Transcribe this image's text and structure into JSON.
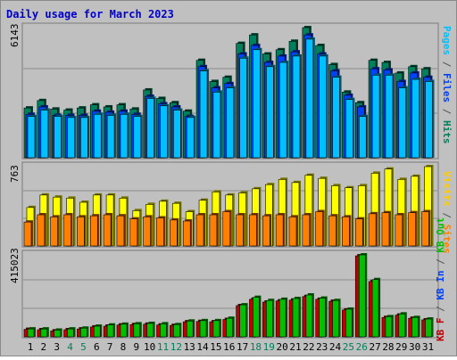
{
  "title": "Daily usage for March 2023",
  "colors": {
    "background": "#c0c0c0",
    "pages": "#00c0ff",
    "files": "#0040ff",
    "hits": "#00805c",
    "visits": "#ffff00",
    "sites": "#ff8000",
    "kb_in": "#00c000",
    "kb_out": "#c00000",
    "weekday_label": "#000000",
    "weekend_label": "#00805c",
    "highlight_label": "#00805c"
  },
  "labels": {
    "pages_max": "6143",
    "visits_max": "763",
    "kb_max": "415023",
    "side1": {
      "pages": "Pages",
      "sep1": " / ",
      "files": "Files",
      "sep2": " / ",
      "hits": "Hits"
    },
    "side2": {
      "visits": "Visits",
      "sep1": " / ",
      "sites": "Sites"
    },
    "side3": {
      "kbout": "KB F",
      "sep1": " / ",
      "kbin": "KB In",
      "sep2": " / ",
      "kbo": "KB Out"
    }
  },
  "chart_data": [
    {
      "type": "bar",
      "title": "Daily usage for March 2023",
      "categories": [
        "1",
        "2",
        "3",
        "4",
        "5",
        "6",
        "7",
        "8",
        "9",
        "10",
        "11",
        "12",
        "13",
        "14",
        "15",
        "16",
        "17",
        "18",
        "19",
        "20",
        "21",
        "22",
        "23",
        "24",
        "25",
        "26",
        "27",
        "28",
        "29",
        "30",
        "31"
      ],
      "category_label_colors": [
        "weekday",
        "weekday",
        "weekday",
        "weekend",
        "weekend",
        "weekday",
        "weekday",
        "weekday",
        "weekday",
        "weekday",
        "weekend",
        "weekend",
        "weekday",
        "weekday",
        "weekday",
        "weekday",
        "weekday",
        "weekend",
        "weekend",
        "weekday",
        "weekday",
        "weekday",
        "weekday",
        "weekday",
        "weekend",
        "weekend",
        "weekday",
        "weekday",
        "weekday",
        "weekday",
        "weekday"
      ],
      "ylim": [
        0,
        6143
      ],
      "series": [
        {
          "name": "Hits",
          "color": "#00805c",
          "values": [
            2350,
            2700,
            2300,
            2250,
            2350,
            2500,
            2400,
            2500,
            2300,
            3200,
            2800,
            2600,
            2200,
            4600,
            3600,
            3800,
            5400,
            5800,
            4900,
            5100,
            5500,
            6143,
            5300,
            4400,
            3100,
            2600,
            4600,
            4500,
            4000,
            4300,
            4200
          ]
        },
        {
          "name": "Files",
          "color": "#0040ff",
          "values": [
            2050,
            2400,
            2000,
            2000,
            2000,
            2200,
            2150,
            2200,
            2050,
            2900,
            2550,
            2400,
            1950,
            4300,
            3300,
            3500,
            4900,
            5300,
            4500,
            4800,
            5000,
            5800,
            4900,
            4100,
            2950,
            2400,
            4200,
            4150,
            3600,
            4000,
            3800
          ]
        },
        {
          "name": "Pages",
          "color": "#00c0ff",
          "values": [
            1950,
            2250,
            1950,
            1900,
            1900,
            2050,
            2000,
            2050,
            1950,
            2800,
            2450,
            2250,
            1900,
            4100,
            3100,
            3300,
            4700,
            5100,
            4300,
            4500,
            4800,
            5600,
            4800,
            3800,
            2750,
            1950,
            3900,
            3900,
            3300,
            3700,
            3600
          ]
        }
      ]
    },
    {
      "type": "bar",
      "title": "",
      "categories": [
        "1",
        "2",
        "3",
        "4",
        "5",
        "6",
        "7",
        "8",
        "9",
        "10",
        "11",
        "12",
        "13",
        "14",
        "15",
        "16",
        "17",
        "18",
        "19",
        "20",
        "21",
        "22",
        "23",
        "24",
        "25",
        "26",
        "27",
        "28",
        "29",
        "30",
        "31"
      ],
      "ylim": [
        0,
        763
      ],
      "series": [
        {
          "name": "Visits",
          "color": "#ffff00",
          "values": [
            370,
            490,
            470,
            460,
            420,
            490,
            490,
            460,
            340,
            400,
            430,
            410,
            330,
            440,
            520,
            490,
            510,
            550,
            590,
            640,
            610,
            680,
            650,
            580,
            560,
            580,
            700,
            740,
            640,
            670,
            763
          ]
        },
        {
          "name": "Sites",
          "color": "#ff8000",
          "values": [
            230,
            300,
            280,
            300,
            280,
            290,
            300,
            290,
            260,
            280,
            270,
            250,
            240,
            300,
            300,
            330,
            300,
            300,
            290,
            300,
            280,
            300,
            330,
            290,
            280,
            260,
            310,
            320,
            300,
            320,
            330
          ]
        }
      ]
    },
    {
      "type": "bar",
      "title": "",
      "categories": [
        "1",
        "2",
        "3",
        "4",
        "5",
        "6",
        "7",
        "8",
        "9",
        "10",
        "11",
        "12",
        "13",
        "14",
        "15",
        "16",
        "17",
        "18",
        "19",
        "20",
        "21",
        "22",
        "23",
        "24",
        "25",
        "26",
        "27",
        "28",
        "29",
        "30",
        "31"
      ],
      "ylim": [
        0,
        415023
      ],
      "series": [
        {
          "name": "KB In",
          "color": "#00c000",
          "values": [
            40000,
            40000,
            34000,
            40000,
            44000,
            54000,
            60000,
            64000,
            66000,
            68000,
            66000,
            62000,
            80000,
            82000,
            82000,
            94000,
            162000,
            200000,
            184000,
            190000,
            194000,
            212000,
            196000,
            184000,
            140000,
            415023,
            290000,
            102000,
            116000,
            98000,
            90000
          ]
        },
        {
          "name": "KB F",
          "color": "#c00000",
          "values": [
            38000,
            36000,
            30000,
            36000,
            40000,
            50000,
            54000,
            60000,
            62000,
            64000,
            60000,
            58000,
            76000,
            78000,
            76000,
            88000,
            158000,
            190000,
            176000,
            182000,
            186000,
            204000,
            190000,
            180000,
            136000,
            410000,
            280000,
            98000,
            110000,
            94000,
            86000
          ]
        }
      ]
    }
  ]
}
